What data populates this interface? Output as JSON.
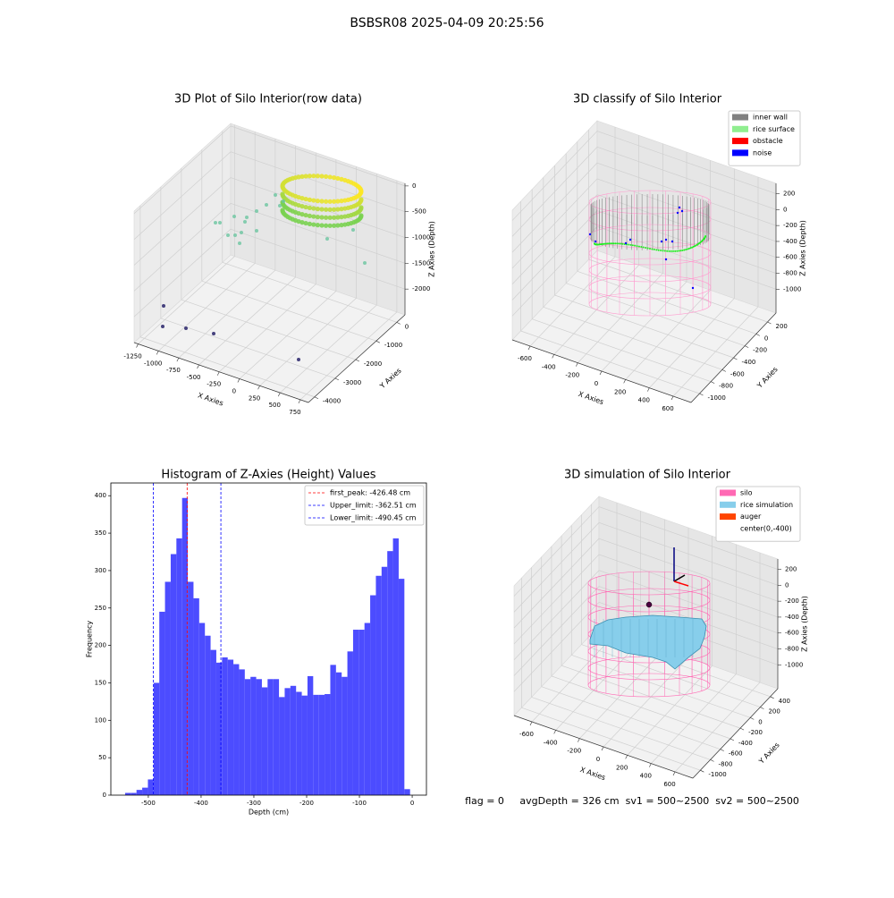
{
  "suptitle": "BSBSR08 2025-04-09 20:25:56",
  "status_text": "flag = 0     avgDepth = 326 cm  sv1 = 500~2500  sv2 = 500~2500",
  "chart_data": [
    {
      "type": "scatter3d",
      "title": "3D Plot of Silo Interior(row data)",
      "xlabel": "X Axies",
      "ylabel": "Y Axies",
      "zlabel": "Z Axies (Depth)",
      "xlim": [
        -1300,
        850
      ],
      "xticks": [
        -1250,
        -1000,
        -750,
        -500,
        -250,
        0,
        250,
        500,
        750
      ],
      "ylim": [
        -4300,
        400
      ],
      "yticks": [
        -4000,
        -3000,
        -2000,
        -1000,
        0
      ],
      "zlim": [
        -2500,
        50
      ],
      "zticks": [
        -2000,
        -1500,
        -1000,
        -500,
        0
      ]
    },
    {
      "type": "classify3d",
      "title": "3D classify of Silo Interior",
      "xlabel": "X Axies",
      "ylabel": "Y Axies",
      "zlabel": "Z Axies (Depth)",
      "xlim": [
        -750,
        750
      ],
      "xticks": [
        -600,
        -400,
        -200,
        0,
        200,
        400,
        600
      ],
      "ylim": [
        -1150,
        350
      ],
      "yticks": [
        -1000,
        -800,
        -600,
        -400,
        -200,
        0,
        200
      ],
      "zlim": [
        -1300,
        330
      ],
      "zticks": [
        -1000,
        -800,
        -600,
        -400,
        -200,
        0,
        200
      ],
      "series": [
        {
          "name": "inner wall",
          "color": "#808080"
        },
        {
          "name": "rice surface",
          "color": "#90ee90"
        },
        {
          "name": "obstacle",
          "color": "#ff0000"
        },
        {
          "name": "noise",
          "color": "#0000ff"
        }
      ]
    },
    {
      "type": "histogram",
      "title": "Histogram of Z-Axies (Height) Values",
      "xlabel": "Depth (cm)",
      "ylabel": "Frequency",
      "color": "#4c4cff",
      "bins": [
        -544,
        -533.2,
        -522.4,
        -511.6,
        -500.8,
        -490,
        -479.2,
        -468.4,
        -457.6,
        -446.8,
        -436,
        -425.2,
        -414.4,
        -403.6,
        -392.8,
        -382,
        -371.2,
        -360.4,
        -349.6,
        -338.8,
        -328,
        -317.2,
        -306.4,
        -295.6,
        -284.8,
        -274,
        -263.2,
        -252.4,
        -241.6,
        -230.8,
        -220,
        -209.2,
        -198.4,
        -187.6,
        -176.8,
        -166,
        -155.2,
        -144.4,
        -133.6,
        -122.8,
        -112,
        -101.2,
        -90.4,
        -79.6,
        -68.8,
        -58,
        -47.2,
        -36.4,
        -25.6,
        -14.8,
        -4
      ],
      "values": [
        3,
        3,
        7,
        10,
        21,
        150,
        245,
        285,
        322,
        343,
        397,
        285,
        263,
        230,
        213,
        194,
        177,
        184,
        181,
        175,
        168,
        155,
        158,
        155,
        144,
        155,
        155,
        131,
        143,
        146,
        138,
        133,
        159,
        134,
        134,
        135,
        174,
        164,
        158,
        192,
        221,
        221,
        230,
        267,
        293,
        305,
        326,
        343,
        289,
        8
      ],
      "xlim": [
        -571,
        27
      ],
      "xticks": [
        -500,
        -400,
        -300,
        -200,
        -100,
        0
      ],
      "ylim": [
        0,
        417
      ],
      "yticks": [
        0,
        50,
        100,
        150,
        200,
        250,
        300,
        350,
        400
      ],
      "vlines": [
        {
          "value": -426.48,
          "label": "first_peak: -426.48 cm",
          "color": "#ff0000"
        },
        {
          "value": -362.51,
          "label": "Upper_limit: -362.51 cm",
          "color": "#0000ff"
        },
        {
          "value": -490.45,
          "label": "Lower_limit: -490.45 cm",
          "color": "#0000ff"
        }
      ]
    },
    {
      "type": "simulation3d",
      "title": "3D simulation of Silo Interior",
      "xlabel": "X Axies",
      "ylabel": "Y Axies",
      "zlabel": "Z Axies (Depth)",
      "xlim": [
        -750,
        750
      ],
      "xticks": [
        -600,
        -400,
        -200,
        0,
        200,
        400,
        600
      ],
      "ylim": [
        -1150,
        550
      ],
      "yticks": [
        -1000,
        -800,
        -600,
        -400,
        -200,
        0,
        200,
        400
      ],
      "zlim": [
        -1300,
        330
      ],
      "zticks": [
        -1000,
        -800,
        -600,
        -400,
        -200,
        0,
        200
      ],
      "series": [
        {
          "name": "silo",
          "color": "#ff69b4"
        },
        {
          "name": "rice simulation",
          "color": "#87ceeb"
        },
        {
          "name": "auger",
          "color": "#ff4500"
        },
        {
          "name": "center(0,-400)",
          "color": "#ffffff"
        }
      ]
    }
  ]
}
